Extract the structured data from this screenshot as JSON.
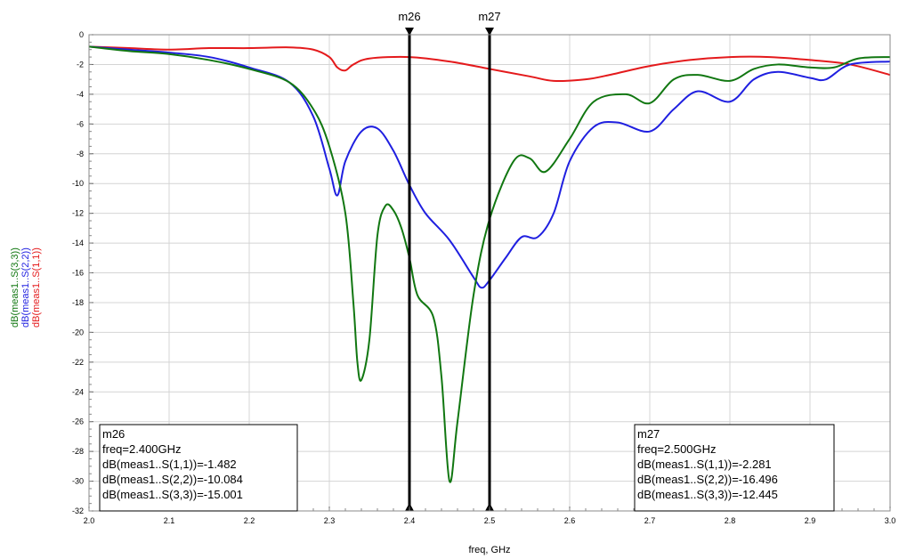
{
  "chart_data": {
    "type": "line",
    "xlabel": "freq, GHz",
    "xlim": [
      2.0,
      3.0
    ],
    "ylim": [
      -32,
      0
    ],
    "x_ticks": [
      "2.0",
      "2.1",
      "2.2",
      "2.3",
      "2.4",
      "2.5",
      "2.6",
      "2.7",
      "2.8",
      "2.9",
      "3.0"
    ],
    "y_ticks": [
      "0",
      "-2",
      "-4",
      "-6",
      "-8",
      "-10",
      "-12",
      "-14",
      "-16",
      "-18",
      "-20",
      "-22",
      "-24",
      "-26",
      "-28",
      "-30",
      "-32"
    ],
    "grid": true,
    "series": [
      {
        "name": "dB(meas1..S(1,1))",
        "color": "#e41a1c",
        "x": [
          2.0,
          2.05,
          2.1,
          2.15,
          2.2,
          2.25,
          2.28,
          2.3,
          2.31,
          2.32,
          2.33,
          2.35,
          2.4,
          2.45,
          2.5,
          2.55,
          2.58,
          2.62,
          2.65,
          2.7,
          2.75,
          2.8,
          2.85,
          2.9,
          2.95,
          3.0
        ],
        "y": [
          -0.8,
          -0.9,
          -1.0,
          -0.9,
          -0.9,
          -0.85,
          -1.0,
          -1.5,
          -2.2,
          -2.4,
          -2.0,
          -1.6,
          -1.5,
          -1.8,
          -2.3,
          -2.8,
          -3.1,
          -3.0,
          -2.7,
          -2.1,
          -1.7,
          -1.5,
          -1.5,
          -1.7,
          -2.0,
          -2.7
        ]
      },
      {
        "name": "dB(meas1..S(2,2))",
        "color": "#1f1fe0",
        "x": [
          2.0,
          2.05,
          2.1,
          2.15,
          2.2,
          2.25,
          2.28,
          2.3,
          2.31,
          2.32,
          2.34,
          2.36,
          2.38,
          2.4,
          2.42,
          2.45,
          2.48,
          2.49,
          2.5,
          2.52,
          2.54,
          2.56,
          2.58,
          2.6,
          2.63,
          2.66,
          2.7,
          2.73,
          2.76,
          2.8,
          2.83,
          2.86,
          2.9,
          2.92,
          2.95,
          3.0
        ],
        "y": [
          -0.8,
          -1.0,
          -1.2,
          -1.5,
          -2.2,
          -3.2,
          -5.5,
          -9.0,
          -10.8,
          -8.5,
          -6.5,
          -6.3,
          -7.8,
          -10.1,
          -12.0,
          -13.8,
          -16.3,
          -17.0,
          -16.5,
          -15.0,
          -13.6,
          -13.6,
          -12.0,
          -8.5,
          -6.2,
          -5.9,
          -6.5,
          -5.0,
          -3.8,
          -4.5,
          -3.0,
          -2.5,
          -2.9,
          -3.0,
          -2.0,
          -1.8
        ]
      },
      {
        "name": "dB(meas1..S(3,3))",
        "color": "#117711",
        "x": [
          2.0,
          2.05,
          2.1,
          2.15,
          2.2,
          2.25,
          2.28,
          2.3,
          2.32,
          2.33,
          2.335,
          2.34,
          2.35,
          2.36,
          2.37,
          2.38,
          2.39,
          2.4,
          2.41,
          2.43,
          2.44,
          2.45,
          2.46,
          2.48,
          2.5,
          2.53,
          2.55,
          2.57,
          2.6,
          2.63,
          2.67,
          2.7,
          2.73,
          2.76,
          2.8,
          2.83,
          2.86,
          2.9,
          2.93,
          2.96,
          3.0
        ],
        "y": [
          -0.8,
          -1.1,
          -1.3,
          -1.7,
          -2.3,
          -3.2,
          -5.0,
          -7.5,
          -12.0,
          -18.0,
          -22.0,
          -23.2,
          -20.5,
          -13.5,
          -11.5,
          -11.8,
          -13.0,
          -15.0,
          -17.5,
          -19.0,
          -23.0,
          -30.0,
          -26.0,
          -17.5,
          -12.4,
          -8.5,
          -8.3,
          -9.2,
          -7.0,
          -4.5,
          -4.0,
          -4.6,
          -3.0,
          -2.7,
          -3.1,
          -2.3,
          -2.0,
          -2.2,
          -2.2,
          -1.6,
          -1.5
        ]
      }
    ],
    "markers": [
      {
        "name": "m26",
        "x": 2.4,
        "lines": [
          "m26",
          "freq=2.400GHz",
          "dB(meas1..S(1,1))=-1.482",
          "dB(meas1..S(2,2))=-10.084",
          "dB(meas1..S(3,3))=-15.001"
        ],
        "box_position": "bottom-left"
      },
      {
        "name": "m27",
        "x": 2.5,
        "lines": [
          "m27",
          "freq=2.500GHz",
          "dB(meas1..S(1,1))=-2.281",
          "dB(meas1..S(2,2))=-16.496",
          "dB(meas1..S(3,3))=-12.445"
        ],
        "box_position": "bottom-right"
      }
    ],
    "legend_placement": "left-vertical"
  }
}
